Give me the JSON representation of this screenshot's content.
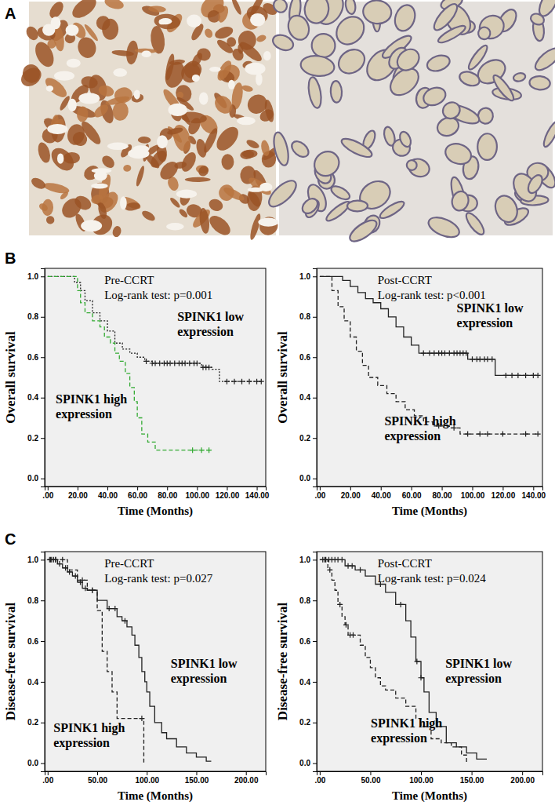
{
  "panel_labels": [
    "A",
    "B",
    "C"
  ],
  "chart_data": [
    {
      "type": "line",
      "annotations": [
        "Pre-CCRT",
        "Log-rank test: p=0.001"
      ],
      "xlabel": "Time (Months)",
      "ylabel": "Overall survival",
      "xlim": [
        -2,
        146
      ],
      "ylim": [
        -0.04,
        1.04
      ],
      "xticks": [
        {
          "value": 0,
          "label": ".00"
        },
        {
          "value": 20,
          "label": "20.00"
        },
        {
          "value": 40,
          "label": "40.00"
        },
        {
          "value": 60,
          "label": "60.00"
        },
        {
          "value": 80,
          "label": "80.00"
        },
        {
          "value": 100,
          "label": "100.00"
        },
        {
          "value": 120,
          "label": "120.00"
        },
        {
          "value": 140,
          "label": "140.00"
        }
      ],
      "yticks": [
        {
          "value": 0,
          "label": "0.0"
        },
        0.2,
        0.4,
        0.6,
        0.8,
        {
          "value": 1,
          "label": "1.0"
        }
      ],
      "series": [
        {
          "name": "SPINK1 low expression",
          "color": "#222222",
          "line_style": "dotted",
          "marker": "plus",
          "x": [
            0,
            18,
            22,
            25,
            30,
            35,
            40,
            45,
            50,
            55,
            60,
            65,
            70,
            103,
            110,
            115,
            143
          ],
          "values": [
            1,
            0.97,
            0.93,
            0.88,
            0.82,
            0.78,
            0.73,
            0.67,
            0.64,
            0.62,
            0.6,
            0.58,
            0.57,
            0.55,
            0.54,
            0.48,
            0.48
          ],
          "censored": [
            66,
            70,
            72,
            75,
            78,
            80,
            82,
            85,
            88,
            90,
            92,
            95,
            98,
            100,
            104,
            106,
            108,
            120,
            125,
            130,
            135,
            140,
            143
          ]
        },
        {
          "name": "SPINK1 high expression",
          "color": "#33aa33",
          "line_style": "dashed",
          "marker": "plus",
          "x": [
            0,
            20,
            22,
            25,
            30,
            35,
            38,
            42,
            45,
            48,
            52,
            55,
            58,
            60,
            63,
            67,
            72,
            110
          ],
          "values": [
            1,
            0.93,
            0.87,
            0.82,
            0.78,
            0.75,
            0.7,
            0.67,
            0.62,
            0.58,
            0.52,
            0.45,
            0.38,
            0.3,
            0.22,
            0.18,
            0.14,
            0.14
          ],
          "censored": [
            97,
            103,
            108
          ]
        }
      ]
    },
    {
      "type": "line",
      "annotations": [
        "Post-CCRT",
        "Log-rank test: p<0.001"
      ],
      "xlabel": "Time (Months)",
      "ylabel": "Overall survival",
      "xlim": [
        -2,
        146
      ],
      "ylim": [
        -0.04,
        1.04
      ],
      "xticks": [
        {
          "value": 0,
          "label": ".00"
        },
        {
          "value": 20,
          "label": "20.00"
        },
        {
          "value": 40,
          "label": "40.00"
        },
        {
          "value": 60,
          "label": "60.00"
        },
        {
          "value": 80,
          "label": "80.00"
        },
        {
          "value": 100,
          "label": "100.00"
        },
        {
          "value": 120,
          "label": "120.00"
        },
        {
          "value": 140,
          "label": "140.00"
        }
      ],
      "yticks": [
        {
          "value": 0,
          "label": "0.0"
        },
        0.2,
        0.4,
        0.6,
        0.8,
        {
          "value": 1,
          "label": "1.0"
        }
      ],
      "series": [
        {
          "name": "SPINK1 low expression",
          "color": "#222222",
          "line_style": "solid",
          "marker": "plus",
          "x": [
            0,
            15,
            20,
            25,
            30,
            35,
            40,
            45,
            50,
            55,
            60,
            65,
            97,
            115,
            143
          ],
          "values": [
            1,
            0.98,
            0.95,
            0.92,
            0.89,
            0.87,
            0.84,
            0.8,
            0.75,
            0.7,
            0.66,
            0.62,
            0.59,
            0.51,
            0.51
          ],
          "censored": [
            68,
            72,
            75,
            78,
            80,
            82,
            85,
            88,
            90,
            92,
            94,
            96,
            100,
            103,
            105,
            108,
            110,
            113,
            122,
            126,
            130,
            135,
            140,
            143
          ]
        },
        {
          "name": "SPINK1 high expression",
          "color": "#222222",
          "line_style": "dashed",
          "marker": "plus",
          "x": [
            0,
            8,
            12,
            16,
            20,
            24,
            28,
            32,
            38,
            44,
            50,
            56,
            62,
            68,
            74,
            85,
            92,
            143
          ],
          "values": [
            1,
            0.93,
            0.85,
            0.78,
            0.7,
            0.63,
            0.56,
            0.5,
            0.46,
            0.42,
            0.38,
            0.34,
            0.31,
            0.28,
            0.26,
            0.25,
            0.22,
            0.22
          ],
          "censored": [
            78,
            88,
            97,
            105,
            110,
            120,
            135,
            143
          ]
        }
      ]
    },
    {
      "type": "line",
      "annotations": [
        "Pre-CCRT",
        "Log-rank test: p=0.027"
      ],
      "xlabel": "Time (Months)",
      "ylabel": "Disease-free survival",
      "xlim": [
        -3,
        220
      ],
      "ylim": [
        -0.04,
        1.04
      ],
      "xticks": [
        {
          "value": 0,
          "label": ".00"
        },
        {
          "value": 50,
          "label": "50.00"
        },
        {
          "value": 100,
          "label": "100.00"
        },
        {
          "value": 150,
          "label": "150.00"
        },
        {
          "value": 200,
          "label": "200.00"
        }
      ],
      "yticks": [
        {
          "value": 0,
          "label": "0.0"
        },
        0.2,
        0.4,
        0.6,
        0.8,
        {
          "value": 1,
          "label": "1.0"
        }
      ],
      "series": [
        {
          "name": "SPINK1 low expression",
          "color": "#222222",
          "line_style": "solid",
          "marker": "plus",
          "x": [
            0,
            10,
            15,
            20,
            25,
            30,
            35,
            40,
            50,
            60,
            70,
            75,
            80,
            85,
            88,
            92,
            95,
            98,
            100,
            103,
            108,
            115,
            120,
            130,
            140,
            150,
            160,
            165
          ],
          "values": [
            1,
            0.98,
            0.96,
            0.94,
            0.92,
            0.89,
            0.86,
            0.85,
            0.8,
            0.76,
            0.72,
            0.7,
            0.67,
            0.63,
            0.58,
            0.52,
            0.45,
            0.4,
            0.35,
            0.28,
            0.2,
            0.15,
            0.12,
            0.08,
            0.05,
            0.03,
            0.01,
            0.01
          ],
          "censored": [
            2,
            4,
            6,
            8,
            12,
            18,
            22,
            28,
            33,
            38,
            45,
            62,
            68,
            78
          ]
        },
        {
          "name": "SPINK1 high expression",
          "color": "#222222",
          "line_style": "dashed",
          "marker": "plus",
          "x": [
            0,
            20,
            30,
            40,
            50,
            55,
            60,
            65,
            70,
            97
          ],
          "values": [
            1,
            0.95,
            0.9,
            0.85,
            0.75,
            0.55,
            0.45,
            0.35,
            0.22,
            0
          ],
          "censored": [
            3,
            8,
            15,
            35,
            45,
            95
          ]
        }
      ]
    },
    {
      "type": "line",
      "annotations": [
        "Post-CCRT",
        "Log-rank test: p=0.024"
      ],
      "xlabel": "Time (Months)",
      "ylabel": "Disease-free survival",
      "xlim": [
        -3,
        220
      ],
      "ylim": [
        -0.04,
        1.04
      ],
      "xticks": [
        {
          "value": 0,
          "label": ".00"
        },
        {
          "value": 50,
          "label": "50.00"
        },
        {
          "value": 100,
          "label": "100.00"
        },
        {
          "value": 150,
          "label": "150.00"
        },
        {
          "value": 200,
          "label": "200.00"
        }
      ],
      "yticks": [
        {
          "value": 0,
          "label": "0.0"
        },
        0.2,
        0.4,
        0.6,
        0.8,
        {
          "value": 1,
          "label": "1.0"
        }
      ],
      "series": [
        {
          "name": "SPINK1 low expression",
          "color": "#222222",
          "line_style": "solid",
          "marker": "plus",
          "x": [
            0,
            25,
            35,
            45,
            55,
            65,
            75,
            85,
            90,
            95,
            100,
            103,
            108,
            115,
            125,
            135,
            145,
            155,
            165
          ],
          "values": [
            1,
            0.97,
            0.95,
            0.92,
            0.88,
            0.84,
            0.78,
            0.7,
            0.62,
            0.5,
            0.42,
            0.35,
            0.25,
            0.18,
            0.1,
            0.08,
            0.05,
            0.02,
            0.02
          ],
          "censored": [
            3,
            6,
            9,
            12,
            15,
            18,
            22,
            28,
            32,
            40,
            60,
            80,
            96,
            100
          ]
        },
        {
          "name": "SPINK1 high expression",
          "color": "#222222",
          "line_style": "dashed",
          "marker": "plus",
          "x": [
            0,
            8,
            12,
            15,
            18,
            22,
            25,
            28,
            40,
            45,
            50,
            55,
            60,
            65,
            75,
            85,
            95,
            100,
            110,
            120,
            130,
            140,
            145
          ],
          "values": [
            1,
            0.95,
            0.9,
            0.85,
            0.78,
            0.72,
            0.68,
            0.63,
            0.58,
            0.52,
            0.47,
            0.42,
            0.38,
            0.36,
            0.32,
            0.28,
            0.22,
            0.18,
            0.12,
            0.1,
            0.08,
            0.04,
            0
          ],
          "censored": [
            5,
            10,
            20,
            26,
            30,
            33
          ]
        }
      ]
    }
  ]
}
